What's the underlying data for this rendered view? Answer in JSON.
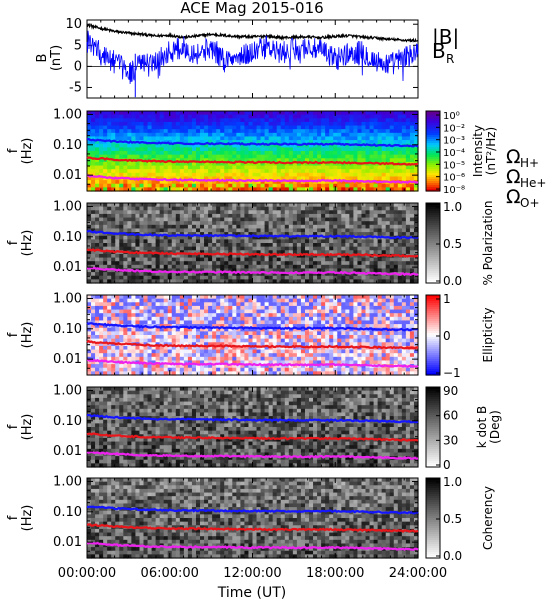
{
  "chart_data": {
    "type": "heatmap",
    "title": "ACE Mag 2015-016",
    "xlabel": "Time (UT)",
    "x_ticks": [
      "00:00:00",
      "06:00:00",
      "12:00:00",
      "18:00:00",
      "24:00:00"
    ],
    "xlim_hours": [
      0,
      24
    ],
    "line_panel": {
      "ylabel_top": "B",
      "ylabel_bottom": "(nT)",
      "ylim": [
        -7.5,
        11
      ],
      "y_ticks": [
        "10",
        "5",
        "0",
        "-5"
      ],
      "series": [
        {
          "name": "|B|",
          "color": "#000000",
          "x": [
            0,
            1,
            2,
            3,
            4,
            5,
            6,
            7,
            8,
            9,
            10,
            11,
            12,
            13,
            14,
            15,
            16,
            17,
            18,
            19,
            20,
            21,
            22,
            23,
            24
          ],
          "y": [
            9.8,
            9.0,
            8.3,
            7.9,
            7.6,
            7.2,
            7.4,
            6.9,
            7.2,
            7.6,
            7.3,
            7.1,
            7.0,
            7.2,
            6.8,
            6.9,
            7.0,
            6.8,
            7.1,
            7.3,
            6.9,
            6.7,
            6.4,
            6.2,
            6.1
          ]
        },
        {
          "name": "B",
          "subscript": "R",
          "color": "#0000ff",
          "x": [
            0,
            1,
            2,
            3,
            4,
            5,
            6,
            7,
            8,
            9,
            10,
            11,
            12,
            13,
            14,
            15,
            16,
            17,
            18,
            19,
            20,
            21,
            22,
            23,
            24
          ],
          "y": [
            6.0,
            3.0,
            1.0,
            -1.5,
            0.5,
            1.5,
            3.5,
            4.5,
            3.0,
            4.5,
            1.5,
            2.0,
            3.5,
            4.5,
            3.0,
            4.0,
            4.5,
            3.5,
            2.0,
            3.0,
            3.5,
            1.0,
            0.5,
            2.0,
            3.5
          ]
        }
      ]
    },
    "spectral_panels": [
      {
        "id": "intensity",
        "ylabel_top": "f",
        "ylabel_bottom": "(Hz)",
        "colorbar": {
          "label_top": "Intensity",
          "label_bottom": "(nT²/Hz)",
          "ticks": [
            "10⁰",
            "10⁻²",
            "10⁻³",
            "10⁻⁴",
            "10⁻⁵",
            "10⁻⁶",
            "10⁻⁸"
          ]
        }
      },
      {
        "id": "polarization",
        "ylabel_top": "f",
        "ylabel_bottom": "(Hz)",
        "colorbar": {
          "label": "% Polarization",
          "ticks": [
            "1.0",
            "0.5",
            "0.0"
          ]
        }
      },
      {
        "id": "ellipticity",
        "ylabel_top": "f",
        "ylabel_bottom": "(Hz)",
        "colorbar": {
          "label": "Ellipticity",
          "ticks": [
            "1",
            "0",
            "−1"
          ]
        }
      },
      {
        "id": "kdotb",
        "ylabel_top": "f",
        "ylabel_bottom": "(Hz)",
        "colorbar": {
          "label_top": "k dot B",
          "label_bottom": "(Deg)",
          "ticks": [
            "90",
            "60",
            "30",
            "0"
          ]
        }
      },
      {
        "id": "coherency",
        "ylabel_top": "f",
        "ylabel_bottom": "(Hz)",
        "colorbar": {
          "label": "Coherency",
          "ticks": [
            "1.0",
            "0.5",
            "0.0"
          ]
        }
      }
    ],
    "f_ticks": [
      "1.00",
      "0.10",
      "0.01"
    ],
    "f_range": [
      0.003,
      1.3
    ],
    "gyro_legend": [
      {
        "symbol": "Ω",
        "sub": "H+",
        "color": "#1515ff"
      },
      {
        "symbol": "Ω",
        "sub": "He+",
        "color": "#e8161b"
      },
      {
        "symbol": "Ω",
        "sub": "O+",
        "color": "#ee22ee"
      }
    ],
    "gyrofrequency_lines": {
      "x": [
        0,
        2,
        4,
        6,
        8,
        10,
        12,
        14,
        16,
        18,
        20,
        22,
        24
      ],
      "H+": [
        0.15,
        0.13,
        0.118,
        0.112,
        0.11,
        0.108,
        0.106,
        0.105,
        0.104,
        0.105,
        0.1,
        0.095,
        0.092
      ],
      "He+": [
        0.0375,
        0.0325,
        0.0295,
        0.028,
        0.0275,
        0.027,
        0.0265,
        0.026,
        0.026,
        0.026,
        0.025,
        0.024,
        0.023
      ],
      "O+": [
        0.0094,
        0.0081,
        0.0074,
        0.007,
        0.0069,
        0.0068,
        0.0066,
        0.0066,
        0.0065,
        0.0066,
        0.0063,
        0.006,
        0.0058
      ]
    }
  }
}
